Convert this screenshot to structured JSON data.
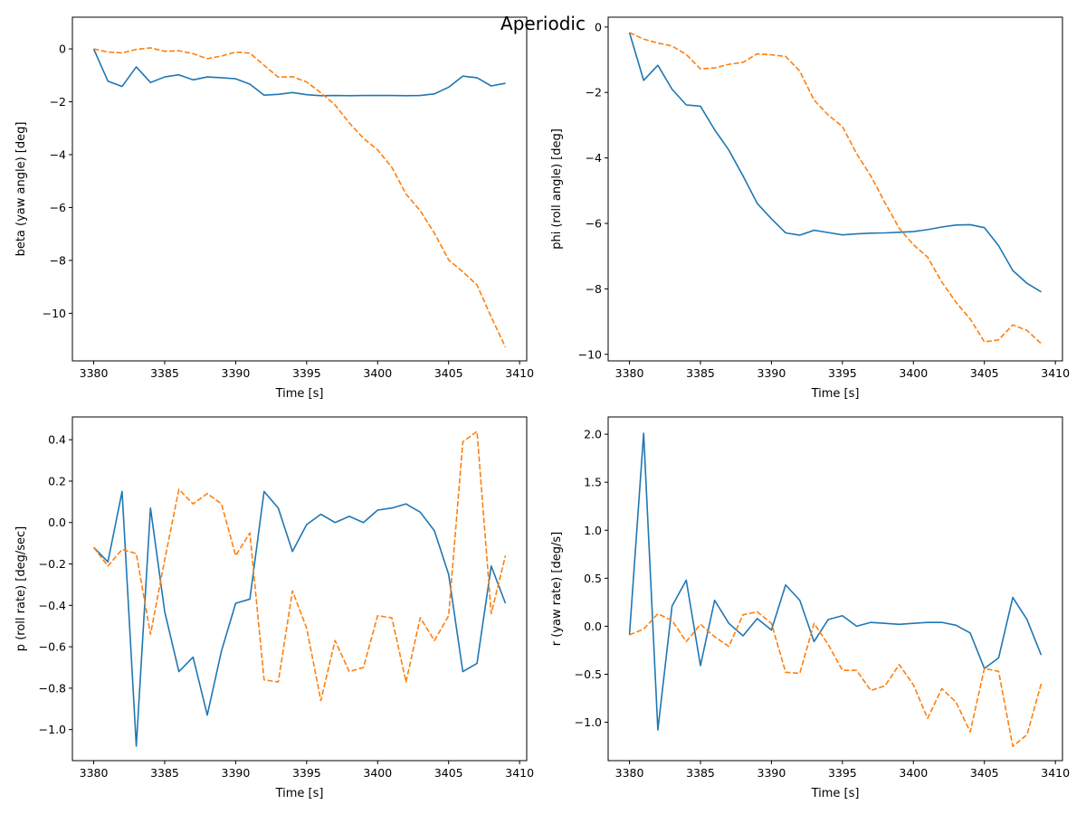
{
  "figure": {
    "title": "Aperiodic"
  },
  "chart_data": [
    {
      "type": "line",
      "xlabel": "Time [s]",
      "ylabel": "beta (yaw angle) [deg]",
      "xlim": [
        3378.5,
        3410.5
      ],
      "ylim": [
        -11.8,
        1.2
      ],
      "xticks": [
        3380,
        3385,
        3390,
        3395,
        3400,
        3405,
        3410
      ],
      "xtick_labels": [
        "3380",
        "3385",
        "3390",
        "3395",
        "3400",
        "3405",
        "3410"
      ],
      "yticks": [
        0,
        -2,
        -4,
        -6,
        -8,
        -10
      ],
      "ytick_labels": [
        "0",
        "−2",
        "−4",
        "−6",
        "−8",
        "−10"
      ],
      "grid": false,
      "x": [
        3380,
        3381,
        3382,
        3383,
        3384,
        3385,
        3386,
        3387,
        3388,
        3389,
        3390,
        3391,
        3392,
        3393,
        3394,
        3395,
        3396,
        3397,
        3398,
        3399,
        3400,
        3401,
        3402,
        3403,
        3404,
        3405,
        3406,
        3407,
        3408,
        3409
      ],
      "series": [
        {
          "color": "#1f77b4",
          "style": "solid",
          "values": [
            0.0,
            -1.22,
            -1.42,
            -0.68,
            -1.27,
            -1.06,
            -0.98,
            -1.17,
            -1.06,
            -1.09,
            -1.13,
            -1.33,
            -1.75,
            -1.72,
            -1.65,
            -1.73,
            -1.77,
            -1.76,
            -1.77,
            -1.76,
            -1.76,
            -1.76,
            -1.77,
            -1.76,
            -1.7,
            -1.45,
            -1.03,
            -1.09,
            -1.4,
            -1.3
          ]
        },
        {
          "color": "#ff7f0e",
          "style": "dashed",
          "values": [
            0.0,
            -0.12,
            -0.15,
            -0.02,
            0.04,
            -0.09,
            -0.07,
            -0.18,
            -0.37,
            -0.27,
            -0.12,
            -0.16,
            -0.62,
            -1.07,
            -1.05,
            -1.25,
            -1.66,
            -2.12,
            -2.8,
            -3.38,
            -3.82,
            -4.48,
            -5.49,
            -6.12,
            -6.97,
            -7.98,
            -8.43,
            -8.93,
            -10.14,
            -11.28
          ]
        }
      ]
    },
    {
      "type": "line",
      "xlabel": "Time [s]",
      "ylabel": "phi (roll angle) [deg]",
      "xlim": [
        3378.5,
        3410.5
      ],
      "ylim": [
        -10.2,
        0.3
      ],
      "xticks": [
        3380,
        3385,
        3390,
        3395,
        3400,
        3405,
        3410
      ],
      "xtick_labels": [
        "3380",
        "3385",
        "3390",
        "3395",
        "3400",
        "3405",
        "3410"
      ],
      "yticks": [
        0,
        -2,
        -4,
        -6,
        -8,
        -10
      ],
      "ytick_labels": [
        "0",
        "−2",
        "−4",
        "−6",
        "−8",
        "−10"
      ],
      "grid": false,
      "x": [
        3380,
        3381,
        3382,
        3383,
        3384,
        3385,
        3386,
        3387,
        3388,
        3389,
        3390,
        3391,
        3392,
        3393,
        3394,
        3395,
        3396,
        3397,
        3398,
        3399,
        3400,
        3401,
        3402,
        3403,
        3404,
        3405,
        3406,
        3407,
        3408,
        3409
      ],
      "series": [
        {
          "color": "#1f77b4",
          "style": "solid",
          "values": [
            -0.17,
            -1.63,
            -1.17,
            -1.9,
            -2.38,
            -2.42,
            -3.14,
            -3.76,
            -4.55,
            -5.39,
            -5.86,
            -6.29,
            -6.36,
            -6.21,
            -6.28,
            -6.35,
            -6.32,
            -6.3,
            -6.29,
            -6.27,
            -6.25,
            -6.19,
            -6.11,
            -6.05,
            -6.04,
            -6.13,
            -6.68,
            -7.44,
            -7.83,
            -8.09
          ]
        },
        {
          "color": "#ff7f0e",
          "style": "dashed",
          "values": [
            -0.17,
            -0.37,
            -0.49,
            -0.58,
            -0.84,
            -1.28,
            -1.25,
            -1.14,
            -1.08,
            -0.82,
            -0.85,
            -0.9,
            -1.35,
            -2.23,
            -2.69,
            -3.04,
            -3.87,
            -4.55,
            -5.37,
            -6.15,
            -6.65,
            -7.03,
            -7.79,
            -8.41,
            -8.92,
            -9.62,
            -9.56,
            -9.1,
            -9.27,
            -9.67
          ]
        }
      ]
    },
    {
      "type": "line",
      "xlabel": "Time [s]",
      "ylabel": "p (roll rate) [deg/sec]",
      "xlim": [
        3378.5,
        3410.5
      ],
      "ylim": [
        -1.15,
        0.51
      ],
      "xticks": [
        3380,
        3385,
        3390,
        3395,
        3400,
        3405,
        3410
      ],
      "xtick_labels": [
        "3380",
        "3385",
        "3390",
        "3395",
        "3400",
        "3405",
        "3410"
      ],
      "yticks": [
        0.4,
        0.2,
        0.0,
        -0.2,
        -0.4,
        -0.6,
        -0.8,
        -1.0
      ],
      "ytick_labels": [
        "0.4",
        "0.2",
        "0.0",
        "−0.2",
        "−0.4",
        "−0.6",
        "−0.8",
        "−1.0"
      ],
      "grid": false,
      "x": [
        3380,
        3381,
        3382,
        3383,
        3384,
        3385,
        3386,
        3387,
        3388,
        3389,
        3390,
        3391,
        3392,
        3393,
        3394,
        3395,
        3396,
        3397,
        3398,
        3399,
        3400,
        3401,
        3402,
        3403,
        3404,
        3405,
        3406,
        3407,
        3408,
        3409
      ],
      "series": [
        {
          "color": "#1f77b4",
          "style": "solid",
          "values": [
            -0.12,
            -0.19,
            0.15,
            -1.08,
            0.07,
            -0.43,
            -0.72,
            -0.65,
            -0.93,
            -0.62,
            -0.39,
            -0.37,
            0.15,
            0.07,
            -0.14,
            -0.01,
            0.04,
            0.0,
            0.03,
            0.0,
            0.06,
            0.07,
            0.09,
            0.05,
            -0.04,
            -0.25,
            -0.72,
            -0.68,
            -0.21,
            -0.39
          ]
        },
        {
          "color": "#ff7f0e",
          "style": "dashed",
          "values": [
            -0.12,
            -0.21,
            -0.13,
            -0.15,
            -0.54,
            -0.18,
            0.16,
            0.09,
            0.14,
            0.09,
            -0.16,
            -0.05,
            -0.76,
            -0.77,
            -0.33,
            -0.51,
            -0.86,
            -0.57,
            -0.72,
            -0.7,
            -0.45,
            -0.46,
            -0.77,
            -0.46,
            -0.57,
            -0.45,
            0.39,
            0.44,
            -0.44,
            -0.16
          ]
        }
      ]
    },
    {
      "type": "line",
      "xlabel": "Time [s]",
      "ylabel": "r (yaw rate) [deg/s]",
      "xlim": [
        3378.5,
        3410.5
      ],
      "ylim": [
        -1.4,
        2.18
      ],
      "xticks": [
        3380,
        3385,
        3390,
        3395,
        3400,
        3405,
        3410
      ],
      "xtick_labels": [
        "3380",
        "3385",
        "3390",
        "3395",
        "3400",
        "3405",
        "3410"
      ],
      "yticks": [
        2.0,
        1.5,
        1.0,
        0.5,
        0.0,
        -0.5,
        -1.0
      ],
      "ytick_labels": [
        "2.0",
        "1.5",
        "1.0",
        "0.5",
        "0.0",
        "−0.5",
        "−1.0"
      ],
      "grid": false,
      "x": [
        3380,
        3381,
        3382,
        3383,
        3384,
        3385,
        3386,
        3387,
        3388,
        3389,
        3390,
        3391,
        3392,
        3393,
        3394,
        3395,
        3396,
        3397,
        3398,
        3399,
        3400,
        3401,
        3402,
        3403,
        3404,
        3405,
        3406,
        3407,
        3408,
        3409
      ],
      "series": [
        {
          "color": "#1f77b4",
          "style": "solid",
          "values": [
            -0.09,
            2.01,
            -1.08,
            0.21,
            0.48,
            -0.41,
            0.27,
            0.03,
            -0.1,
            0.08,
            -0.04,
            0.43,
            0.27,
            -0.16,
            0.07,
            0.11,
            0.0,
            0.04,
            0.03,
            0.02,
            0.03,
            0.04,
            0.04,
            0.01,
            -0.07,
            -0.44,
            -0.33,
            0.3,
            0.07,
            -0.3
          ]
        },
        {
          "color": "#ff7f0e",
          "style": "dashed",
          "values": [
            -0.09,
            -0.03,
            0.13,
            0.06,
            -0.16,
            0.02,
            -0.11,
            -0.21,
            0.12,
            0.15,
            0.03,
            -0.48,
            -0.49,
            0.03,
            -0.19,
            -0.46,
            -0.46,
            -0.67,
            -0.62,
            -0.4,
            -0.61,
            -0.96,
            -0.65,
            -0.79,
            -1.1,
            -0.44,
            -0.47,
            -1.25,
            -1.13,
            -0.6
          ]
        }
      ]
    }
  ]
}
